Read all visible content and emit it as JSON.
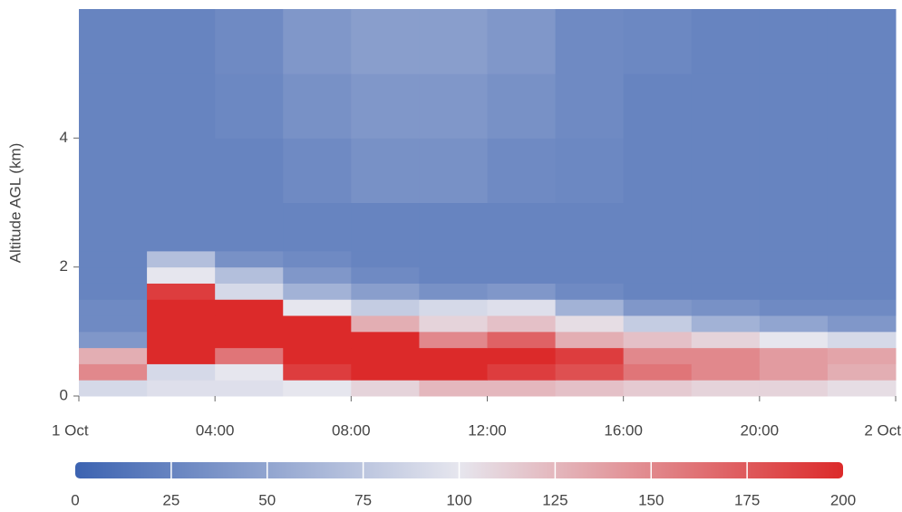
{
  "chart_data": {
    "type": "heatmap",
    "y_label": "Altitude AGL (km)",
    "x_bins": [
      0,
      2,
      4,
      6,
      8,
      10,
      12,
      14,
      16,
      18,
      20,
      22,
      24
    ],
    "y_bins": [
      0,
      0.25,
      0.5,
      0.75,
      1,
      1.25,
      1.5,
      1.75,
      2,
      2.25,
      3,
      4,
      5,
      6
    ],
    "z": [
      [
        90,
        95,
        95,
        100,
        110,
        125,
        125,
        120,
        115,
        110,
        110,
        105
      ],
      [
        150,
        90,
        100,
        190,
        200,
        200,
        190,
        180,
        160,
        150,
        140,
        130
      ],
      [
        130,
        200,
        160,
        200,
        200,
        200,
        200,
        190,
        150,
        150,
        140,
        135
      ],
      [
        40,
        200,
        200,
        200,
        200,
        150,
        170,
        130,
        120,
        110,
        100,
        90
      ],
      [
        30,
        200,
        200,
        200,
        130,
        110,
        120,
        105,
        80,
        60,
        50,
        40
      ],
      [
        30,
        200,
        200,
        100,
        80,
        90,
        95,
        60,
        40,
        35,
        30,
        30
      ],
      [
        25,
        190,
        90,
        60,
        45,
        35,
        40,
        30,
        25,
        25,
        25,
        25
      ],
      [
        25,
        100,
        70,
        40,
        30,
        25,
        25,
        25,
        25,
        25,
        25,
        25
      ],
      [
        25,
        70,
        35,
        30,
        25,
        25,
        25,
        25,
        25,
        25,
        25,
        25
      ],
      [
        25,
        25,
        25,
        25,
        25,
        25,
        25,
        25,
        25,
        25,
        25,
        25
      ],
      [
        25,
        25,
        25,
        30,
        35,
        35,
        30,
        28,
        25,
        25,
        25,
        25
      ],
      [
        25,
        25,
        28,
        35,
        40,
        40,
        35,
        30,
        25,
        25,
        25,
        25
      ],
      [
        25,
        25,
        30,
        40,
        45,
        45,
        40,
        30,
        28,
        25,
        25,
        25
      ]
    ],
    "xlim": [
      0,
      24
    ],
    "xticks": [
      {
        "value": 0,
        "label": "1 Oct"
      },
      {
        "value": 4,
        "label": "04:00"
      },
      {
        "value": 8,
        "label": "08:00"
      },
      {
        "value": 12,
        "label": "12:00"
      },
      {
        "value": 16,
        "label": "16:00"
      },
      {
        "value": 20,
        "label": "20:00"
      },
      {
        "value": 24,
        "label": "2 Oct"
      }
    ],
    "ylim": [
      0,
      6
    ],
    "yticks": [
      0,
      2,
      4
    ],
    "clim": [
      0,
      200
    ],
    "cticks": [
      0,
      25,
      50,
      75,
      100,
      125,
      150,
      175,
      200
    ],
    "colorscale": [
      "#3c63b1",
      "#e6e6ee",
      "#dc2a2a"
    ]
  }
}
